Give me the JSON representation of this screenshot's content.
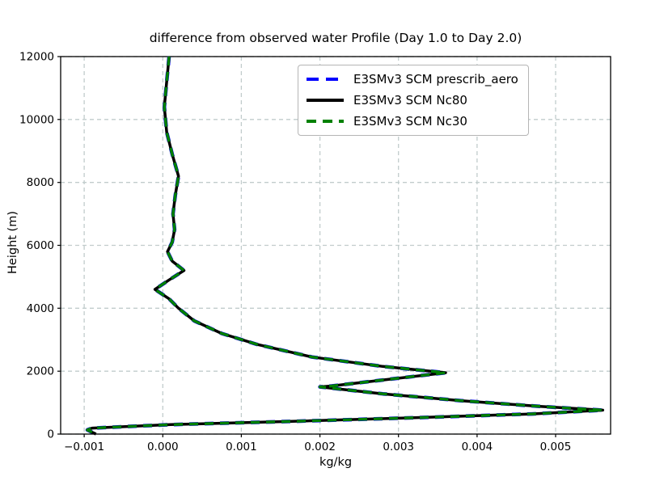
{
  "chart_data": {
    "type": "line",
    "title": "difference from observed water Profile (Day 1.0 to Day 2.0)",
    "xlabel": "kg/kg",
    "ylabel": "Height (m)",
    "xlim": [
      -0.0013,
      0.0057
    ],
    "ylim": [
      0,
      12000
    ],
    "grid": true,
    "legend_position": "upper right",
    "xticks": {
      "values": [
        -0.001,
        0.0,
        0.001,
        0.002,
        0.003,
        0.004,
        0.005
      ],
      "labels": [
        "−0.001",
        "0.000",
        "0.001",
        "0.002",
        "0.003",
        "0.004",
        "0.005"
      ]
    },
    "yticks": {
      "values": [
        0,
        2000,
        4000,
        6000,
        8000,
        10000,
        12000
      ],
      "labels": [
        "0",
        "2000",
        "4000",
        "6000",
        "8000",
        "10000",
        "12000"
      ]
    },
    "profile_points": [
      [
        8e-05,
        12000
      ],
      [
        5e-05,
        11200
      ],
      [
        2e-05,
        10400
      ],
      [
        5e-05,
        9600
      ],
      [
        0.00012,
        8900
      ],
      [
        0.0002,
        8200
      ],
      [
        0.00016,
        7600
      ],
      [
        0.00013,
        7000
      ],
      [
        0.00015,
        6500
      ],
      [
        0.00012,
        6100
      ],
      [
        6e-05,
        5800
      ],
      [
        0.00012,
        5500
      ],
      [
        0.00027,
        5200
      ],
      [
        8e-05,
        4900
      ],
      [
        -0.0001,
        4600
      ],
      [
        8e-05,
        4300
      ],
      [
        0.0002,
        4000
      ],
      [
        0.0004,
        3600
      ],
      [
        0.00075,
        3200
      ],
      [
        0.0012,
        2850
      ],
      [
        0.0019,
        2450
      ],
      [
        0.0028,
        2150
      ],
      [
        0.0036,
        1950
      ],
      [
        0.0028,
        1720
      ],
      [
        0.00215,
        1530
      ],
      [
        0.002,
        1500
      ],
      [
        0.0028,
        1280
      ],
      [
        0.0038,
        1060
      ],
      [
        0.0048,
        880
      ],
      [
        0.0056,
        760
      ],
      [
        0.0047,
        640
      ],
      [
        0.0032,
        520
      ],
      [
        0.0016,
        400
      ],
      [
        0.0001,
        300
      ],
      [
        -0.0009,
        190
      ],
      [
        -0.00096,
        130
      ],
      [
        -0.00085,
        0
      ]
    ],
    "series": [
      {
        "name": "E3SMv3 SCM prescrib_aero",
        "color": "#0000ff",
        "style": "dashed",
        "width": 4.5
      },
      {
        "name": "E3SMv3 SCM Nc80",
        "color": "#000000",
        "style": "solid",
        "width": 3.5
      },
      {
        "name": "E3SMv3 SCM Nc30",
        "color": "#008000",
        "style": "dashed",
        "width": 3.5
      }
    ]
  }
}
